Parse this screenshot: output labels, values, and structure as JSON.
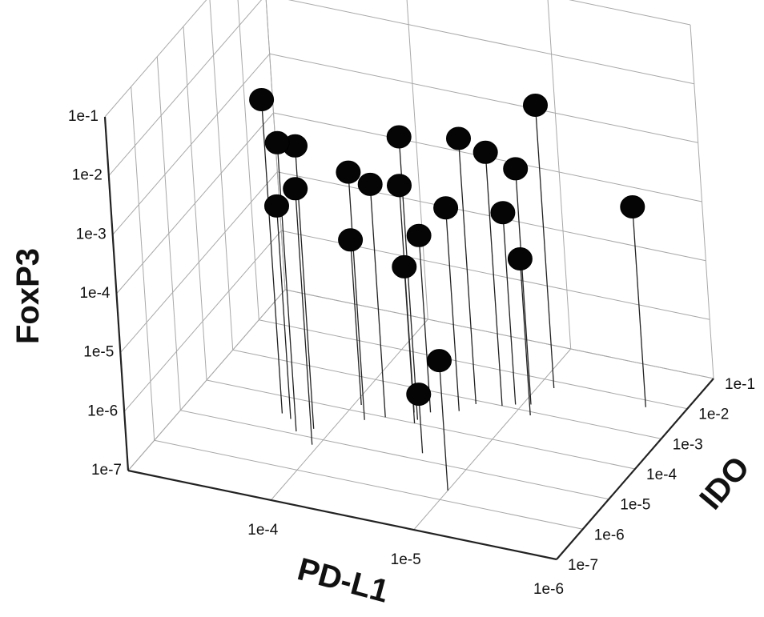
{
  "chart_data": {
    "type": "scatter",
    "variant": "3d-scatter-with-drop-lines",
    "scale": "log10",
    "axes": {
      "x": {
        "label": "PD-L1",
        "ticks": [
          "1e-4",
          "1e-5",
          "1e-6"
        ],
        "range": [
          "1e-3",
          "1e-6"
        ]
      },
      "y": {
        "label": "IDO",
        "ticks": [
          "1e-1",
          "1e-2",
          "1e-3",
          "1e-4",
          "1e-5",
          "1e-6",
          "1e-7"
        ],
        "range": [
          "1e-7",
          "1e-1"
        ]
      },
      "z": {
        "label": "FoxP3",
        "ticks": [
          "1e-1",
          "1e-2",
          "1e-3",
          "1e-4",
          "1e-5",
          "1e-6",
          "1e-7"
        ],
        "range": [
          "1e-7",
          "1e-1"
        ]
      }
    },
    "grid": true,
    "colors": {
      "point": "#050505",
      "stem": "#222222",
      "grid": "#a8a8a8"
    },
    "points": [
      {
        "pdl1": 0.00024,
        "ido": 3.2e-05,
        "foxp3": 0.021
      },
      {
        "pdl1": 0.00016,
        "ido": 1.2e-05,
        "foxp3": 0.0079
      },
      {
        "pdl1": 0.00013,
        "ido": 1.8e-05,
        "foxp3": 0.0063
      },
      {
        "pdl1": 0.00011,
        "ido": 6.3e-06,
        "foxp3": 0.0022
      },
      {
        "pdl1": 0.0002,
        "ido": 2.5e-05,
        "foxp3": 0.00041
      },
      {
        "pdl1": 3.5e-05,
        "ido": 0.00013,
        "foxp3": 0.0063
      },
      {
        "pdl1": 7.2e-05,
        "ido": 6.3e-05,
        "foxp3": 0.0016
      },
      {
        "pdl1": 5.6e-05,
        "ido": 0.0001,
        "foxp3": 0.00089
      },
      {
        "pdl1": 4e-05,
        "ido": 0.0002,
        "foxp3": 0.00071
      },
      {
        "pdl1": 1.9e-05,
        "ido": 0.00079,
        "foxp3": 0.0032
      },
      {
        "pdl1": 3.2e-05,
        "ido": 0.00025,
        "foxp3": 0.0001
      },
      {
        "pdl1": 1.3e-05,
        "ido": 0.001,
        "foxp3": 0.002
      },
      {
        "pdl1": 2.2e-05,
        "ido": 0.0004,
        "foxp3": 0.00028
      },
      {
        "pdl1": 8.9e-06,
        "ido": 0.0016,
        "foxp3": 0.001
      },
      {
        "pdl1": 1.1e-05,
        "ido": 0.0013,
        "foxp3": 0.00018
      },
      {
        "pdl1": 7.9e-06,
        "ido": 0.00079,
        "foxp3": 4.5e-05
      },
      {
        "pdl1": 1.8e-06,
        "ido": 0.0063,
        "foxp3": 0.00025
      },
      {
        "pdl1": 9e-05,
        "ido": 0.00016,
        "foxp3": 6.3e-05
      },
      {
        "pdl1": 3.5e-05,
        "ido": 0.0001,
        "foxp3": 4.5e-05
      },
      {
        "pdl1": 2.2e-05,
        "ido": 1.6e-05,
        "foxp3": 1e-06
      },
      {
        "pdl1": 1e-05,
        "ido": 2e-06,
        "foxp3": 1.6e-05
      },
      {
        "pdl1": 7.9e-06,
        "ido": 0.0063,
        "foxp3": 0.0063
      }
    ]
  }
}
